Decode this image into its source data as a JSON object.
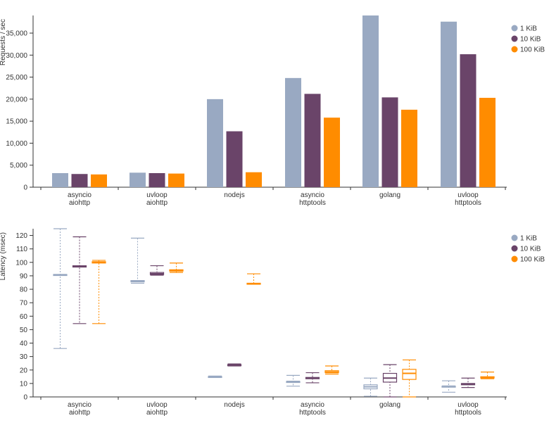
{
  "chart_data": [
    {
      "type": "bar",
      "ylabel": "Requests / sec",
      "ylim": [
        0,
        39000
      ],
      "yticks": [
        0,
        5000,
        10000,
        15000,
        20000,
        25000,
        30000,
        35000
      ],
      "yticklabels": [
        "0",
        "5,000",
        "10,000",
        "15,000",
        "20,000",
        "25,000",
        "30,000",
        "35,000"
      ],
      "categories": [
        [
          "asyncio",
          "aiohttp"
        ],
        [
          "uvloop",
          "aiohttp"
        ],
        [
          "nodejs"
        ],
        [
          "asyncio",
          "httptools"
        ],
        [
          "golang"
        ],
        [
          "uvloop",
          "httptools"
        ]
      ],
      "series": [
        {
          "name": "1 KiB",
          "color": "#99a9c2",
          "values": [
            3200,
            3300,
            20000,
            24800,
            39000,
            37600
          ]
        },
        {
          "name": "10 KiB",
          "color": "#6a4469",
          "values": [
            3000,
            3200,
            12700,
            21200,
            20400,
            30200
          ]
        },
        {
          "name": "100 KiB",
          "color": "#ff8c00",
          "values": [
            2900,
            3100,
            3400,
            15800,
            17600,
            20300
          ]
        }
      ],
      "legend": "top-right",
      "grid": false
    },
    {
      "type": "box",
      "ylabel": "Latency (msec)",
      "ylim": [
        0,
        125
      ],
      "yticks": [
        0,
        10,
        20,
        30,
        40,
        50,
        60,
        70,
        80,
        90,
        100,
        110,
        120
      ],
      "yticklabels": [
        "0",
        "10",
        "20",
        "30",
        "40",
        "50",
        "60",
        "70",
        "80",
        "90",
        "100",
        "110",
        "120"
      ],
      "categories": [
        [
          "asyncio",
          "aiohttp"
        ],
        [
          "uvloop",
          "aiohttp"
        ],
        [
          "nodejs"
        ],
        [
          "asyncio",
          "httptools"
        ],
        [
          "golang"
        ],
        [
          "uvloop",
          "httptools"
        ]
      ],
      "series": [
        {
          "name": "1 KiB",
          "color": "#99a9c2",
          "boxes": [
            {
              "min": 36,
              "q1": 90.5,
              "median": 90.8,
              "q3": 91,
              "max": 125
            },
            {
              "min": 84.5,
              "q1": 85.5,
              "median": 86,
              "q3": 86.5,
              "max": 118
            },
            {
              "min": 14.5,
              "q1": 14.8,
              "median": 15,
              "q3": 15.2,
              "max": 15.5
            },
            {
              "min": 8,
              "q1": 11.5,
              "median": 11.5,
              "q3": 11.5,
              "max": 16
            },
            {
              "min": 0.5,
              "q1": 6,
              "median": 7.5,
              "q3": 9,
              "max": 14
            },
            {
              "min": 3.5,
              "q1": 8,
              "median": 8,
              "q3": 8,
              "max": 12
            }
          ]
        },
        {
          "name": "10 KiB",
          "color": "#6a4469",
          "boxes": [
            {
              "min": 54.5,
              "q1": 96.5,
              "median": 97,
              "q3": 97.5,
              "max": 119
            },
            {
              "min": 90.5,
              "q1": 91,
              "median": 91.5,
              "q3": 92.5,
              "max": 97.5
            },
            {
              "min": 23,
              "q1": 23.3,
              "median": 23.7,
              "q3": 24,
              "max": 24.5
            },
            {
              "min": 10.5,
              "q1": 13.5,
              "median": 14,
              "q3": 14.5,
              "max": 18
            },
            {
              "min": 0,
              "q1": 11,
              "median": 14,
              "q3": 17.5,
              "max": 24
            },
            {
              "min": 7,
              "q1": 9,
              "median": 9.5,
              "q3": 10,
              "max": 14
            }
          ]
        },
        {
          "name": "100 KiB",
          "color": "#ff8c00",
          "boxes": [
            {
              "min": 54.5,
              "q1": 99.5,
              "median": 100,
              "q3": 100.5,
              "max": 101.5
            },
            {
              "min": 92.5,
              "q1": 93.5,
              "median": 94,
              "q3": 94.5,
              "max": 99.5
            },
            {
              "min": 84,
              "q1": 84,
              "median": 84.2,
              "q3": 84.5,
              "max": 91.5
            },
            {
              "min": 17,
              "q1": 18,
              "median": 18.5,
              "q3": 19.5,
              "max": 23
            },
            {
              "min": 0,
              "q1": 13,
              "median": 17.5,
              "q3": 20.5,
              "max": 27.5
            },
            {
              "min": 13.5,
              "q1": 14,
              "median": 14.5,
              "q3": 15,
              "max": 18.5
            }
          ]
        }
      ],
      "legend": "top-right",
      "grid": false
    }
  ]
}
